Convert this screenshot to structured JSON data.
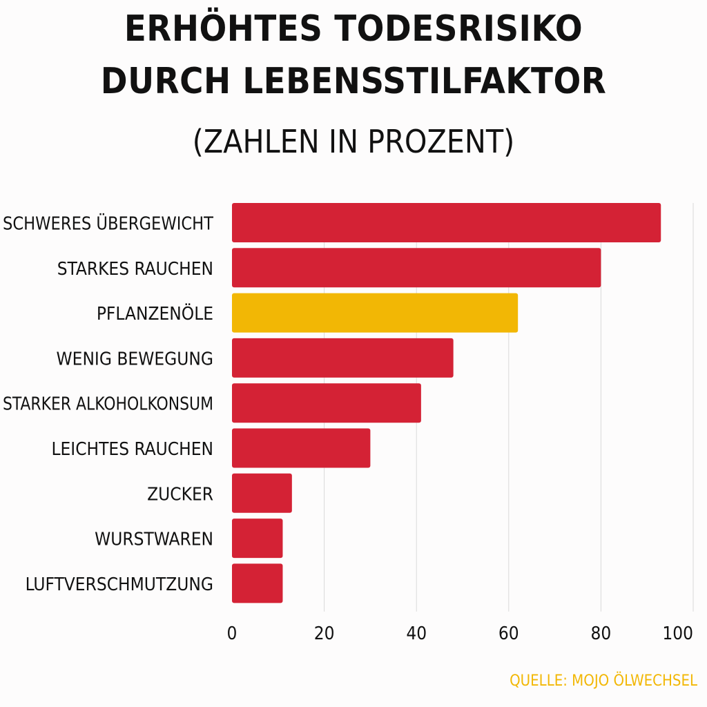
{
  "title_line1": "Erhöhtes Todesrisiko",
  "title_line2": "durch Lebensstilfaktor",
  "subtitle": "(Zahlen in Prozent)",
  "source": "Quelle: Mojo Ölwechsel",
  "colors": {
    "primary": "#d42235",
    "highlight": "#f2b705",
    "grid": "#d9d9d9",
    "text": "#111111"
  },
  "chart_data": {
    "type": "bar",
    "orientation": "horizontal",
    "categories": [
      "Schweres Übergewicht",
      "Starkes Rauchen",
      "Pflanzenöle",
      "Wenig Bewegung",
      "Starker Alkoholkonsum",
      "Leichtes Rauchen",
      "Zucker",
      "Wurstwaren",
      "Luftverschmutzung"
    ],
    "values": [
      93,
      80,
      62,
      48,
      41,
      30,
      13,
      11,
      11
    ],
    "highlight_index": 2,
    "xlim": [
      0,
      100
    ],
    "xticks": [
      "0",
      "20",
      "40",
      "60",
      "80",
      "100"
    ],
    "grid": true
  }
}
